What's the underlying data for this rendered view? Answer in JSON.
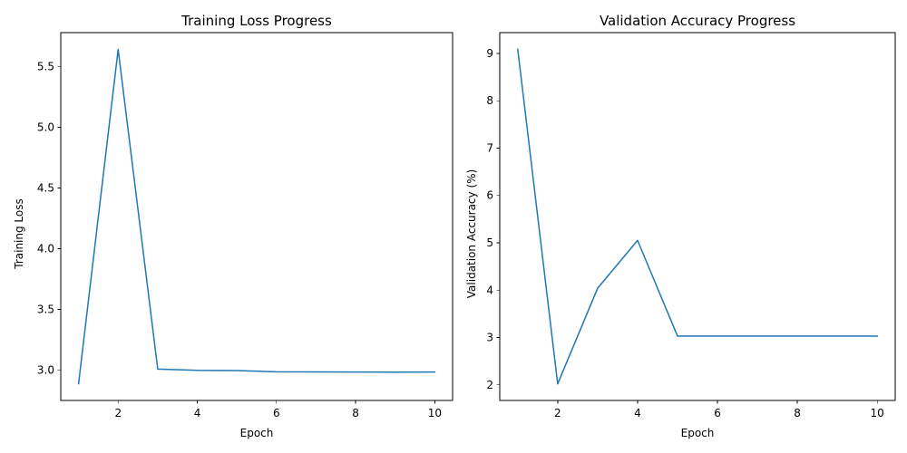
{
  "colors": {
    "series": "#1f77b4",
    "axes": "#000000",
    "background": "#ffffff"
  },
  "chart_data": [
    {
      "type": "line",
      "title": "Training Loss Progress",
      "xlabel": "Epoch",
      "ylabel": "Training Loss",
      "x": [
        1,
        2,
        3,
        4,
        5,
        6,
        7,
        8,
        9,
        10
      ],
      "series": [
        {
          "values": [
            2.89,
            5.64,
            3.01,
            3.0,
            2.998,
            2.988,
            2.987,
            2.986,
            2.985,
            2.986
          ]
        }
      ],
      "xticks": [
        2,
        4,
        6,
        8,
        10
      ],
      "yticks": [
        3.0,
        3.5,
        4.0,
        4.5,
        5.0,
        5.5
      ],
      "xtick_labels": [
        "2",
        "4",
        "6",
        "8",
        "10"
      ],
      "ytick_labels": [
        "3.0",
        "3.5",
        "4.0",
        "4.5",
        "5.0",
        "5.5"
      ],
      "xlim": [
        0.55,
        10.45
      ],
      "ylim": [
        2.752,
        5.778
      ],
      "grid": false,
      "legend": false
    },
    {
      "type": "line",
      "title": "Validation Accuracy Progress",
      "xlabel": "Epoch",
      "ylabel": "Validation Accuracy (%)",
      "x": [
        1,
        2,
        3,
        4,
        5,
        6,
        7,
        8,
        9,
        10
      ],
      "series": [
        {
          "values": [
            9.09,
            2.02,
            4.04,
            5.05,
            3.03,
            3.03,
            3.03,
            3.03,
            3.03,
            3.03
          ]
        }
      ],
      "xticks": [
        2,
        4,
        6,
        8,
        10
      ],
      "yticks": [
        2,
        3,
        4,
        5,
        6,
        7,
        8,
        9
      ],
      "xtick_labels": [
        "2",
        "4",
        "6",
        "8",
        "10"
      ],
      "ytick_labels": [
        "2",
        "3",
        "4",
        "5",
        "6",
        "7",
        "8",
        "9"
      ],
      "xlim": [
        0.55,
        10.45
      ],
      "ylim": [
        1.67,
        9.44
      ],
      "grid": false,
      "legend": false
    }
  ]
}
